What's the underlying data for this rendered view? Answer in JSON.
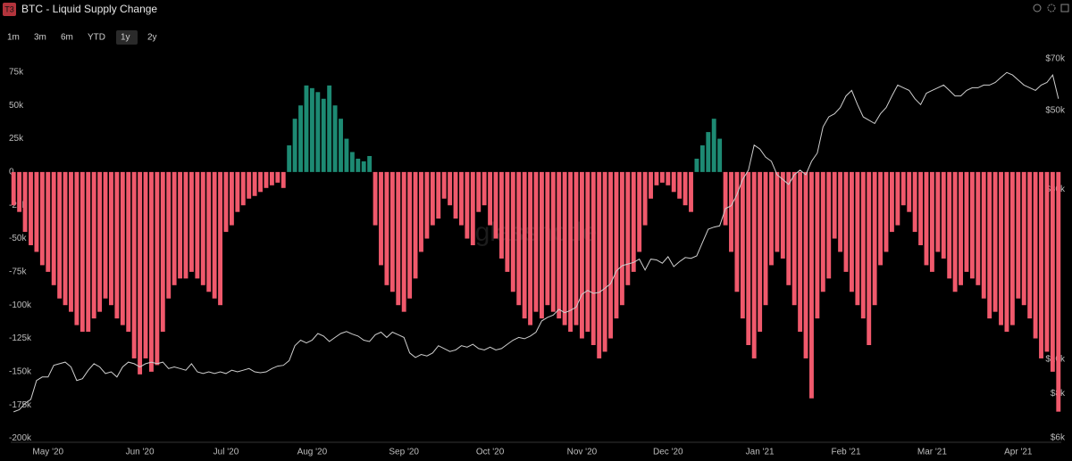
{
  "toolbar": {
    "badge": "T3",
    "ranges": [
      "1m",
      "3m",
      "6m",
      "YTD",
      "1y",
      "2y"
    ],
    "active_range": "1y"
  },
  "chart_data": {
    "type": "bar",
    "title": "BTC - Liquid Supply Change",
    "watermark": "glassnode",
    "categories": [
      null,
      null,
      null,
      null,
      null,
      null,
      "May '20",
      null,
      null,
      null,
      null,
      null,
      null,
      null,
      null,
      null,
      null,
      null,
      null,
      null,
      null,
      null,
      "Jun '20",
      null,
      null,
      null,
      null,
      null,
      null,
      null,
      null,
      null,
      null,
      null,
      null,
      null,
      null,
      "Jul '20",
      null,
      null,
      null,
      null,
      null,
      null,
      null,
      null,
      null,
      null,
      null,
      null,
      null,
      null,
      "Aug '20",
      null,
      null,
      null,
      null,
      null,
      null,
      null,
      null,
      null,
      null,
      null,
      null,
      null,
      null,
      null,
      "Sep '20",
      null,
      null,
      null,
      null,
      null,
      null,
      null,
      null,
      null,
      null,
      null,
      null,
      null,
      null,
      "Oct '20",
      null,
      null,
      null,
      null,
      null,
      null,
      null,
      null,
      null,
      null,
      null,
      null,
      null,
      null,
      null,
      "Nov '20",
      null,
      null,
      null,
      null,
      null,
      null,
      null,
      null,
      null,
      null,
      null,
      null,
      null,
      null,
      "Dec '20",
      null,
      null,
      null,
      null,
      null,
      null,
      null,
      null,
      null,
      null,
      null,
      null,
      null,
      null,
      null,
      "Jan '21",
      null,
      null,
      null,
      null,
      null,
      null,
      null,
      null,
      null,
      null,
      null,
      null,
      null,
      null,
      "Feb '21",
      null,
      null,
      null,
      null,
      null,
      null,
      null,
      null,
      null,
      null,
      null,
      null,
      null,
      null,
      "Mar '21",
      null,
      null,
      null,
      null,
      null,
      null,
      null,
      null,
      null,
      null,
      null,
      null,
      null,
      null,
      "Apr '21",
      null,
      null,
      null,
      null,
      null,
      null,
      null
    ],
    "series": [
      {
        "color_positive": "#1d8a73",
        "color_negative": "#f0596c",
        "values": [
          -25000,
          -30000,
          -45000,
          -55000,
          -60000,
          -70000,
          -75000,
          -85000,
          -95000,
          -100000,
          -105000,
          -115000,
          -120000,
          -120000,
          -110000,
          -105000,
          -95000,
          -100000,
          -110000,
          -115000,
          -120000,
          -140000,
          -152000,
          -140000,
          -150000,
          -145000,
          -120000,
          -95000,
          -85000,
          -80000,
          -80000,
          -75000,
          -80000,
          -85000,
          -90000,
          -95000,
          -100000,
          -45000,
          -40000,
          -30000,
          -25000,
          -20000,
          -18000,
          -15000,
          -12000,
          -10000,
          -8000,
          -12000,
          20000,
          40000,
          50000,
          65000,
          63000,
          60000,
          55000,
          65000,
          50000,
          40000,
          25000,
          15000,
          10000,
          8000,
          12000,
          -40000,
          -70000,
          -85000,
          -90000,
          -100000,
          -105000,
          -95000,
          -80000,
          -60000,
          -50000,
          -40000,
          -35000,
          -20000,
          -25000,
          -35000,
          -40000,
          -50000,
          -55000,
          -30000,
          -25000,
          -40000,
          -50000,
          -65000,
          -75000,
          -90000,
          -100000,
          -110000,
          -115000,
          -105000,
          -110000,
          -100000,
          -105000,
          -110000,
          -115000,
          -120000,
          -115000,
          -125000,
          -120000,
          -130000,
          -140000,
          -135000,
          -125000,
          -110000,
          -100000,
          -85000,
          -75000,
          -60000,
          -40000,
          -20000,
          -10000,
          -8000,
          -10000,
          -15000,
          -20000,
          -25000,
          -30000,
          10000,
          20000,
          30000,
          40000,
          25000,
          -40000,
          -60000,
          -90000,
          -110000,
          -130000,
          -140000,
          -120000,
          -100000,
          -70000,
          -60000,
          -65000,
          -85000,
          -100000,
          -120000,
          -140000,
          -170000,
          -110000,
          -90000,
          -80000,
          -50000,
          -60000,
          -75000,
          -90000,
          -100000,
          -110000,
          -130000,
          -100000,
          -70000,
          -60000,
          -45000,
          -40000,
          -25000,
          -30000,
          -45000,
          -55000,
          -70000,
          -75000,
          -60000,
          -65000,
          -80000,
          -90000,
          -85000,
          -75000,
          -80000,
          -85000,
          -95000,
          -110000,
          -105000,
          -115000,
          -120000,
          -115000,
          -95000,
          -100000,
          -110000,
          -125000,
          -140000,
          -135000,
          -150000,
          -180000
        ]
      },
      {
        "type": "line",
        "axis": "y2",
        "color": "#cfcfcf",
        "values": [
          7100,
          7200,
          7500,
          7700,
          8700,
          8900,
          8900,
          9600,
          9700,
          9800,
          9500,
          8700,
          8800,
          9300,
          9700,
          9500,
          9100,
          9200,
          8900,
          9500,
          9800,
          9700,
          9500,
          9700,
          9800,
          9700,
          9800,
          9400,
          9500,
          9400,
          9300,
          9700,
          9200,
          9100,
          9200,
          9100,
          9200,
          9100,
          9300,
          9200,
          9300,
          9400,
          9200,
          9150,
          9200,
          9400,
          9550,
          9600,
          9900,
          10900,
          11300,
          11100,
          11300,
          11800,
          11600,
          11200,
          11500,
          11800,
          11950,
          11750,
          11600,
          11300,
          11200,
          11700,
          11900,
          11500,
          11900,
          11700,
          11500,
          10400,
          10100,
          10300,
          10200,
          10400,
          10900,
          10700,
          10500,
          10600,
          10900,
          10800,
          11000,
          10700,
          10600,
          10800,
          10600,
          10700,
          11000,
          11300,
          11500,
          11400,
          11600,
          11900,
          12800,
          13100,
          13300,
          13800,
          13500,
          13700,
          14000,
          15200,
          15600,
          15300,
          15400,
          15800,
          16300,
          17700,
          18300,
          18500,
          18700,
          19100,
          17800,
          19100,
          19000,
          18600,
          19400,
          18200,
          18800,
          19300,
          19200,
          19500,
          21300,
          23200,
          23500,
          23700,
          26500,
          27000,
          29000,
          32000,
          34000,
          40000,
          39000,
          37000,
          36000,
          33000,
          32000,
          31000,
          33000,
          34000,
          33000,
          36000,
          38000,
          45000,
          48000,
          49000,
          51000,
          55000,
          57000,
          52000,
          48000,
          47000,
          46000,
          49000,
          51000,
          55000,
          59000,
          58000,
          57000,
          54000,
          52000,
          56000,
          57000,
          58000,
          59000,
          57000,
          55000,
          55000,
          57000,
          58000,
          58000,
          59000,
          59000,
          60000,
          62000,
          64000,
          63000,
          61000,
          59000,
          58000,
          57000,
          59000,
          60000,
          63000,
          54000
        ]
      }
    ],
    "ylim": [
      -203000,
      89000
    ],
    "yticks": [
      {
        "value": 75000,
        "label": "75k"
      },
      {
        "value": 50000,
        "label": "50k"
      },
      {
        "value": 25000,
        "label": "25k"
      },
      0,
      {
        "value": -25000,
        "label": "-25k"
      },
      {
        "value": -50000,
        "label": "-50k"
      },
      {
        "value": -75000,
        "label": "-75k"
      },
      {
        "value": -100000,
        "label": "-100k"
      },
      {
        "value": -125000,
        "label": "-125k"
      },
      {
        "value": -150000,
        "label": "-150k"
      },
      {
        "value": -175000,
        "label": "-175k"
      },
      {
        "value": -200000,
        "label": "-200k"
      }
    ],
    "y2lim": [
      5830,
      72400
    ],
    "y2log": true,
    "y2ticks": [
      {
        "value": 70000,
        "label": "$70k"
      },
      {
        "value": 50000,
        "label": "$50k"
      },
      {
        "value": 30000,
        "label": "$30k"
      },
      {
        "value": 10000,
        "label": "$10k"
      },
      {
        "value": 8000,
        "label": "$8k"
      },
      {
        "value": 6000,
        "label": "$6k"
      }
    ]
  }
}
